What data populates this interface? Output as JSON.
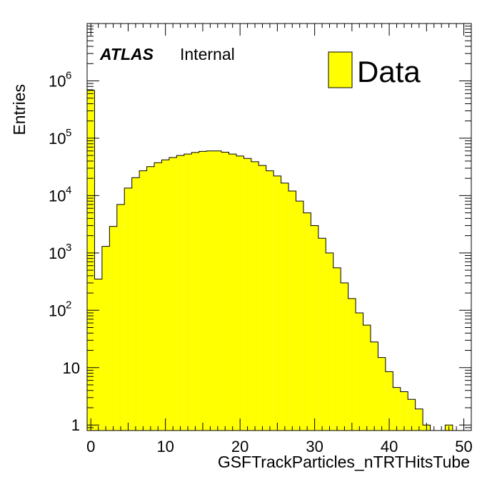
{
  "chart_data": {
    "type": "bar",
    "histogram": true,
    "x_bin_edges": [
      -0.5,
      0.5,
      1.5,
      2.5,
      3.5,
      4.5,
      5.5,
      6.5,
      7.5,
      8.5,
      9.5,
      10.5,
      11.5,
      12.5,
      13.5,
      14.5,
      15.5,
      16.5,
      17.5,
      18.5,
      19.5,
      20.5,
      21.5,
      22.5,
      23.5,
      24.5,
      25.5,
      26.5,
      27.5,
      28.5,
      29.5,
      30.5,
      31.5,
      32.5,
      33.5,
      34.5,
      35.5,
      36.5,
      37.5,
      38.5,
      39.5,
      40.5,
      41.5,
      42.5,
      43.5,
      44.5,
      45.5,
      46.5,
      47.5,
      48.5,
      49.5,
      50.5
    ],
    "values": [
      680000,
      350,
      1300,
      2900,
      7000,
      13500,
      20500,
      27000,
      32000,
      37500,
      42000,
      46000,
      50000,
      53000,
      56500,
      59000,
      60000,
      60000,
      57000,
      53000,
      49000,
      44500,
      39000,
      33500,
      27000,
      22000,
      16500,
      12000,
      8000,
      5000,
      3000,
      1800,
      1000,
      550,
      300,
      160,
      90,
      55,
      28,
      15,
      8.5,
      4.5,
      3.8,
      2.8,
      1.9,
      1.0,
      0,
      0,
      1.0,
      0,
      0
    ],
    "series": [
      {
        "name": "Data",
        "color": "#ffff00"
      }
    ],
    "xlabel": "GSFTrackParticles_nTRTHitsTube",
    "ylabel": "Entries",
    "xlim": [
      -0.5,
      51
    ],
    "ylim": [
      0.8,
      10000000
    ],
    "y_log": true,
    "x_ticks": [
      0,
      10,
      20,
      30,
      40,
      50
    ],
    "x_tick_labels": [
      "0",
      "10",
      "20",
      "30",
      "40",
      "50"
    ],
    "y_ticks": [
      1,
      10,
      100,
      1000,
      10000,
      100000,
      1000000
    ],
    "y_tick_labels": [
      {
        "base": "1",
        "exp": ""
      },
      {
        "base": "10",
        "exp": ""
      },
      {
        "base": "10",
        "exp": "2"
      },
      {
        "base": "10",
        "exp": "3"
      },
      {
        "base": "10",
        "exp": "4"
      },
      {
        "base": "10",
        "exp": "5"
      },
      {
        "base": "10",
        "exp": "6"
      }
    ],
    "label_bold": "ATLAS",
    "label_normal": "Internal",
    "legend": {
      "entries": [
        "Data"
      ],
      "placement": "top-right"
    },
    "grid": false
  }
}
